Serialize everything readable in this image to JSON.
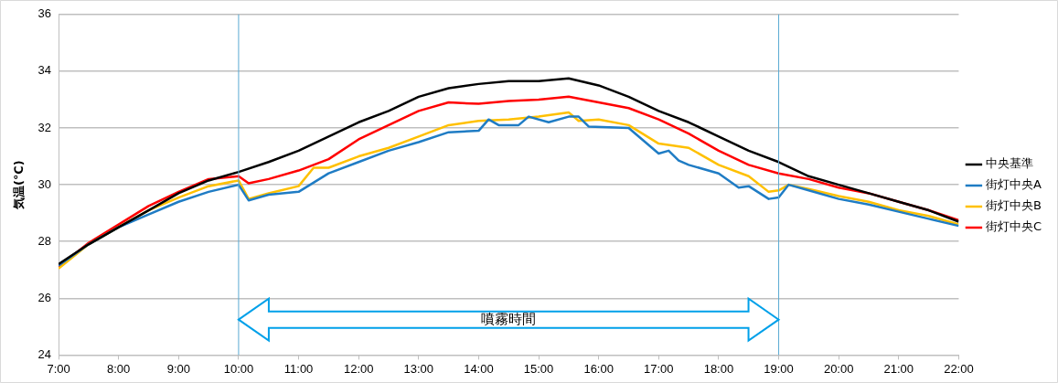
{
  "chart_data": {
    "type": "line",
    "ylabel": "気温(℃)",
    "xlim": [
      7,
      22
    ],
    "ylim": [
      24,
      36
    ],
    "yticks": [
      24,
      26,
      28,
      30,
      32,
      34,
      36
    ],
    "xticks": [
      {
        "value": 7,
        "label": "7:00"
      },
      {
        "value": 8,
        "label": "8:00"
      },
      {
        "value": 9,
        "label": "9:00"
      },
      {
        "value": 10,
        "label": "10:00"
      },
      {
        "value": 11,
        "label": "11:00"
      },
      {
        "value": 12,
        "label": "12:00"
      },
      {
        "value": 13,
        "label": "13:00"
      },
      {
        "value": 14,
        "label": "14:00"
      },
      {
        "value": 15,
        "label": "15:00"
      },
      {
        "value": 16,
        "label": "16:00"
      },
      {
        "value": 17,
        "label": "17:00"
      },
      {
        "value": 18,
        "label": "18:00"
      },
      {
        "value": 19,
        "label": "19:00"
      },
      {
        "value": 20,
        "label": "20:00"
      },
      {
        "value": 21,
        "label": "21:00"
      },
      {
        "value": 22,
        "label": "22:00"
      }
    ],
    "grid": "y",
    "legend": "right",
    "marker": "none",
    "line_style": "solid",
    "ref_lines": [
      {
        "axis": "x",
        "value": 10,
        "label": null,
        "color": "#5aaad2"
      },
      {
        "axis": "x",
        "value": 19,
        "label": null,
        "color": "#5aaad2"
      }
    ],
    "annotations": [
      "噴霧時間"
    ],
    "series": [
      {
        "name": "中央基準",
        "color": "#000000",
        "x": [
          7,
          7.5,
          8,
          8.5,
          9,
          9.5,
          10,
          10.5,
          11,
          11.5,
          12,
          12.5,
          13,
          13.5,
          14,
          14.5,
          15,
          15.5,
          16,
          16.5,
          17,
          17.5,
          18,
          18.5,
          19,
          19.5,
          20,
          20.5,
          21,
          21.5,
          22
        ],
        "values": [
          27.2,
          27.9,
          28.5,
          29.1,
          29.7,
          30.15,
          30.45,
          30.8,
          31.2,
          31.7,
          32.2,
          32.6,
          33.1,
          33.4,
          33.55,
          33.65,
          33.65,
          33.75,
          33.5,
          33.1,
          32.6,
          32.2,
          31.7,
          31.2,
          30.8,
          30.3,
          30.0,
          29.7,
          29.4,
          29.1,
          28.7
        ]
      },
      {
        "name": "街灯中央A",
        "color": "#1f7cc4",
        "x": [
          7,
          7.5,
          8,
          8.5,
          9,
          9.5,
          10,
          10.1667,
          10.5,
          11,
          11.5,
          12,
          12.5,
          13,
          13.5,
          14,
          14.1667,
          14.3333,
          14.6667,
          14.8333,
          15.1667,
          15.5,
          15.6667,
          15.8333,
          16.5,
          17,
          17.1667,
          17.3333,
          17.5,
          18,
          18.3333,
          18.5,
          18.8333,
          19,
          19.1667,
          19.5,
          20,
          20.5,
          21,
          21.5,
          22
        ],
        "values": [
          27.15,
          27.9,
          28.5,
          28.95,
          29.4,
          29.75,
          30.0,
          29.45,
          29.65,
          29.75,
          30.4,
          30.8,
          31.2,
          31.5,
          31.85,
          31.9,
          32.3,
          32.1,
          32.1,
          32.4,
          32.2,
          32.4,
          32.4,
          32.05,
          32.0,
          31.1,
          31.2,
          30.85,
          30.7,
          30.4,
          29.9,
          29.95,
          29.5,
          29.55,
          30.0,
          29.8,
          29.5,
          29.3,
          29.05,
          28.8,
          28.55
        ]
      },
      {
        "name": "街灯中央B",
        "color": "#ffc000",
        "x": [
          7,
          7.5,
          8,
          8.5,
          9,
          9.5,
          10,
          10.1667,
          10.5,
          11,
          11.25,
          11.5,
          12,
          12.5,
          13,
          13.5,
          14,
          14.5,
          15,
          15.5,
          15.6667,
          16,
          16.5,
          17,
          17.5,
          18,
          18.5,
          18.8333,
          19,
          19.1667,
          19.5,
          20,
          20.5,
          21,
          21.5,
          22
        ],
        "values": [
          27.05,
          27.9,
          28.5,
          29.1,
          29.55,
          29.95,
          30.15,
          29.5,
          29.7,
          29.95,
          30.6,
          30.6,
          31.0,
          31.3,
          31.7,
          32.1,
          32.25,
          32.3,
          32.4,
          32.55,
          32.25,
          32.3,
          32.1,
          31.45,
          31.3,
          30.7,
          30.3,
          29.75,
          29.8,
          30.0,
          29.85,
          29.6,
          29.4,
          29.1,
          28.9,
          28.6
        ]
      },
      {
        "name": "街灯中央C",
        "color": "#ff0000",
        "x": [
          7,
          7.5,
          8,
          8.5,
          9,
          9.5,
          10,
          10.1667,
          10.5,
          11,
          11.5,
          12,
          12.5,
          13,
          13.5,
          14,
          14.5,
          15,
          15.5,
          16,
          16.5,
          17,
          17.5,
          18,
          18.5,
          19,
          19.5,
          20,
          20.5,
          21,
          21.5,
          22
        ],
        "values": [
          27.1,
          27.95,
          28.6,
          29.25,
          29.75,
          30.2,
          30.3,
          30.05,
          30.2,
          30.5,
          30.9,
          31.6,
          32.1,
          32.6,
          32.9,
          32.85,
          32.95,
          33.0,
          33.1,
          32.9,
          32.7,
          32.3,
          31.8,
          31.2,
          30.7,
          30.4,
          30.2,
          29.9,
          29.7,
          29.4,
          29.1,
          28.75
        ]
      }
    ]
  }
}
